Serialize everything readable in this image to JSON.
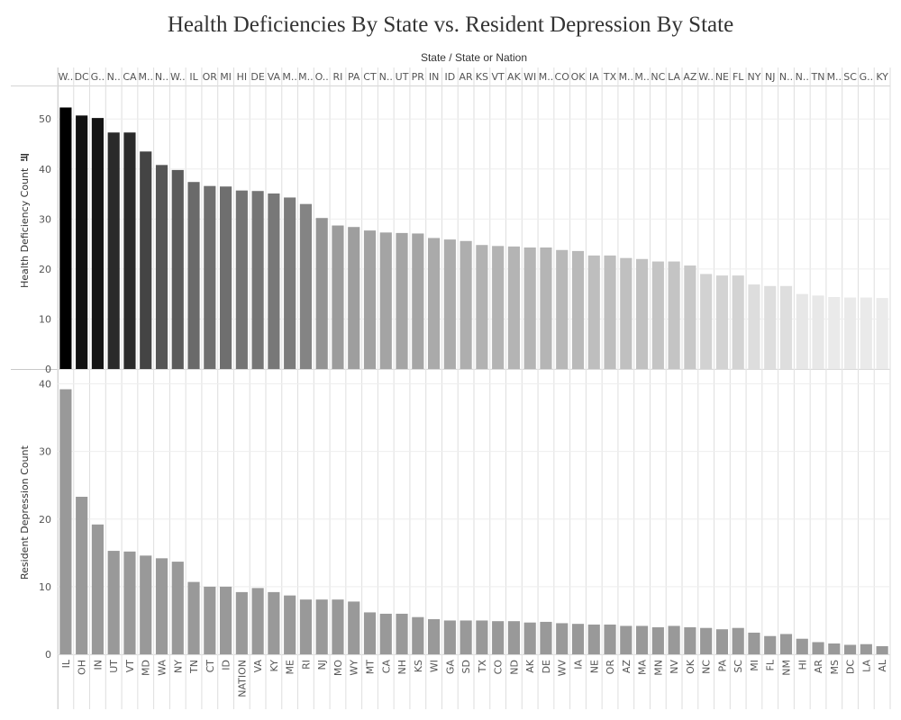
{
  "title": "Health Deficiencies By State vs. Resident Depression By State",
  "top_axis_title": "State / State or Nation",
  "chart_data": [
    {
      "type": "bar",
      "ylabel": "Health Deficiency Count",
      "ylim": [
        0,
        54
      ],
      "yticks": [
        0,
        10,
        20,
        30,
        40,
        50
      ],
      "grid": true,
      "color_scale": [
        "#000000",
        "#ebebeb"
      ],
      "categories": [
        "W..",
        "DC",
        "G..",
        "N..",
        "CA",
        "M..",
        "N..",
        "W..",
        "IL",
        "OR",
        "MI",
        "HI",
        "DE",
        "VA",
        "M..",
        "M..",
        "O..",
        "RI",
        "PA",
        "CT",
        "N..",
        "UT",
        "PR",
        "IN",
        "ID",
        "AR",
        "KS",
        "VT",
        "AK",
        "WI",
        "M..",
        "CO",
        "OK",
        "IA",
        "TX",
        "M..",
        "M..",
        "NC",
        "LA",
        "AZ",
        "W..",
        "NE",
        "FL",
        "NY",
        "NJ",
        "N..",
        "N..",
        "TN",
        "M..",
        "SC",
        "G..",
        "KY"
      ],
      "values": [
        52.3,
        50.7,
        50.2,
        47.3,
        47.3,
        43.5,
        40.8,
        39.8,
        37.4,
        36.6,
        36.5,
        35.7,
        35.6,
        35.1,
        34.3,
        33.0,
        30.2,
        28.7,
        28.4,
        27.7,
        27.3,
        27.2,
        27.1,
        26.2,
        25.9,
        25.6,
        24.8,
        24.6,
        24.5,
        24.3,
        24.3,
        23.8,
        23.6,
        22.7,
        22.7,
        22.2,
        22.0,
        21.5,
        21.5,
        20.7,
        19.0,
        18.7,
        18.7,
        16.9,
        16.6,
        16.6,
        15.0,
        14.7,
        14.4,
        14.3,
        14.3,
        14.2
      ]
    },
    {
      "type": "bar",
      "ylabel": "Resident Depression Count",
      "ylim": [
        0,
        41
      ],
      "yticks": [
        0,
        10,
        20,
        30,
        40
      ],
      "grid": true,
      "bar_color": "#999999",
      "categories": [
        "IL",
        "OH",
        "IN",
        "UT",
        "VT",
        "MD",
        "WA",
        "NY",
        "TN",
        "CT",
        "ID",
        "NATION",
        "VA",
        "KY",
        "ME",
        "RI",
        "NJ",
        "MO",
        "WY",
        "MT",
        "CA",
        "NH",
        "KS",
        "WI",
        "GA",
        "SD",
        "TX",
        "CO",
        "ND",
        "AK",
        "DE",
        "WV",
        "IA",
        "NE",
        "OR",
        "AZ",
        "MA",
        "MN",
        "NV",
        "OK",
        "NC",
        "PA",
        "SC",
        "MI",
        "FL",
        "NM",
        "HI",
        "AR",
        "MS",
        "DC",
        "LA",
        "AL"
      ],
      "values": [
        39.2,
        23.3,
        19.2,
        15.3,
        15.2,
        14.6,
        14.2,
        13.7,
        10.7,
        10.0,
        10.0,
        9.2,
        9.8,
        9.2,
        8.7,
        8.1,
        8.1,
        8.1,
        7.8,
        6.2,
        6.0,
        6.0,
        5.5,
        5.2,
        5.0,
        5.0,
        5.0,
        4.9,
        4.9,
        4.7,
        4.8,
        4.6,
        4.5,
        4.4,
        4.4,
        4.2,
        4.2,
        4.0,
        4.2,
        4.0,
        3.9,
        3.7,
        3.9,
        3.2,
        2.7,
        3.0,
        2.3,
        1.8,
        1.6,
        1.4,
        1.5,
        1.2
      ]
    }
  ]
}
